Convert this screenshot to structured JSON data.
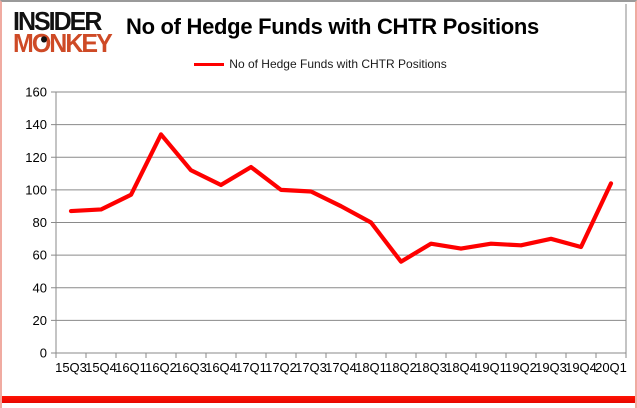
{
  "brand": {
    "line1": "INSIDER",
    "line2_part1": "M",
    "line2_o": "O",
    "line2_part2": "NKEY",
    "monkey_color": "#ce4a26"
  },
  "header": {
    "title": "No of Hedge Funds with CHTR Positions"
  },
  "legend": {
    "label": "No of Hedge Funds with CHTR Positions",
    "line_color": "#fe0000"
  },
  "chart_data": {
    "type": "line",
    "title": "No of Hedge Funds with CHTR Positions",
    "series": [
      {
        "name": "No of Hedge Funds with CHTR Positions",
        "values": [
          87,
          88,
          97,
          134,
          112,
          103,
          114,
          100,
          99,
          90,
          80,
          56,
          67,
          64,
          67,
          66,
          70,
          65,
          104
        ]
      }
    ],
    "categories": [
      "15Q3",
      "15Q4",
      "16Q1",
      "16Q2",
      "16Q3",
      "16Q4",
      "17Q1",
      "17Q2",
      "17Q3",
      "17Q4",
      "18Q1",
      "18Q2",
      "18Q3",
      "18Q4",
      "19Q1",
      "19Q2",
      "19Q3",
      "19Q4",
      "20Q1"
    ],
    "ylim": [
      0,
      160
    ],
    "ytick_step": 20,
    "grid": true,
    "legend_position": "top-center",
    "line_color": "#fe0000",
    "gridline_color": "#8a8a8a",
    "axis_label_color": "#000000"
  }
}
